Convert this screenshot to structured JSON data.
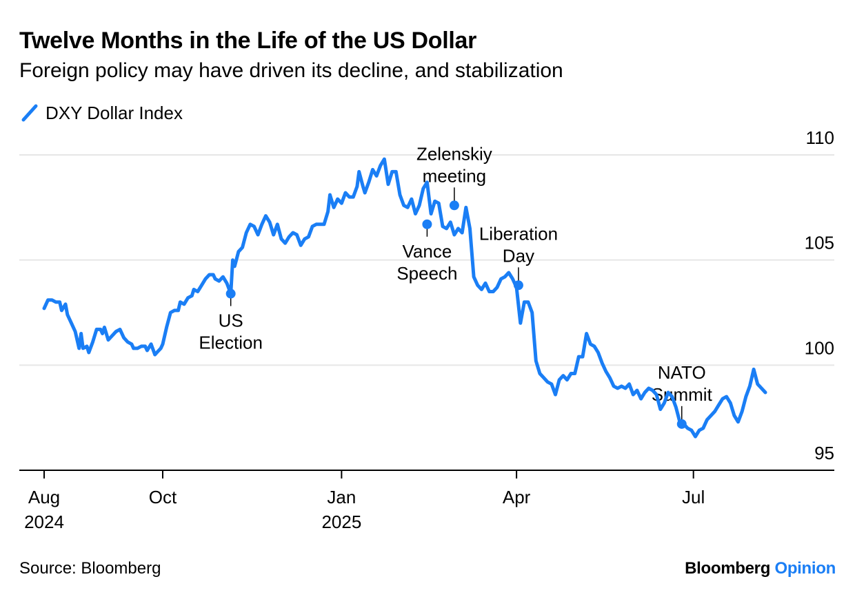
{
  "title": "Twelve Months in the Life of the US Dollar",
  "subtitle": "Foreign policy may have driven its decline, and stabilization",
  "source": "Source: Bloomberg",
  "brand": {
    "name": "Bloomberg",
    "suffix": "Opinion"
  },
  "colors": {
    "line": "#1a7ef5",
    "grid": "#e6e6e6",
    "axis": "#000000",
    "text": "#000000",
    "brand_accent": "#1a7ef5"
  },
  "chart_data": {
    "type": "line",
    "title": "Twelve Months in the Life of the US Dollar",
    "subtitle": "Foreign policy may have driven its decline, and stabilization",
    "xlabel": "",
    "ylabel": "",
    "ylim": [
      95,
      110
    ],
    "xlim": [
      "2024-07-25",
      "2025-08-31"
    ],
    "yaxis_position": "right",
    "grid": true,
    "legend_position": "top-left",
    "y_ticks": [
      {
        "value": 95,
        "label": "95"
      },
      {
        "value": 100,
        "label": "100"
      },
      {
        "value": 105,
        "label": "105"
      },
      {
        "value": 110,
        "label": "110"
      }
    ],
    "x_ticks": [
      {
        "date": "2024-08-01",
        "label": "Aug",
        "sublabel": "2024"
      },
      {
        "date": "2024-10-01",
        "label": "Oct",
        "sublabel": ""
      },
      {
        "date": "2025-01-01",
        "label": "Jan",
        "sublabel": "2025"
      },
      {
        "date": "2025-04-01",
        "label": "Apr",
        "sublabel": ""
      },
      {
        "date": "2025-07-01",
        "label": "Jul",
        "sublabel": ""
      }
    ],
    "series": [
      {
        "name": "DXY Dollar Index",
        "points": [
          [
            "2024-08-01",
            102.7
          ],
          [
            "2024-08-03",
            103.1
          ],
          [
            "2024-08-05",
            103.1
          ],
          [
            "2024-08-07",
            103.0
          ],
          [
            "2024-08-09",
            103.0
          ],
          [
            "2024-08-10",
            102.6
          ],
          [
            "2024-08-12",
            102.9
          ],
          [
            "2024-08-13",
            102.4
          ],
          [
            "2024-08-15",
            102.0
          ],
          [
            "2024-08-17",
            101.6
          ],
          [
            "2024-08-19",
            100.8
          ],
          [
            "2024-08-20",
            101.5
          ],
          [
            "2024-08-21",
            100.8
          ],
          [
            "2024-08-23",
            100.9
          ],
          [
            "2024-08-24",
            100.6
          ],
          [
            "2024-08-26",
            101.1
          ],
          [
            "2024-08-28",
            101.7
          ],
          [
            "2024-08-30",
            101.7
          ],
          [
            "2024-08-31",
            101.5
          ],
          [
            "2024-09-01",
            101.8
          ],
          [
            "2024-09-03",
            101.2
          ],
          [
            "2024-09-05",
            101.4
          ],
          [
            "2024-09-07",
            101.6
          ],
          [
            "2024-09-09",
            101.7
          ],
          [
            "2024-09-11",
            101.3
          ],
          [
            "2024-09-13",
            101.1
          ],
          [
            "2024-09-15",
            101.0
          ],
          [
            "2024-09-16",
            100.8
          ],
          [
            "2024-09-18",
            100.8
          ],
          [
            "2024-09-20",
            100.9
          ],
          [
            "2024-09-22",
            100.9
          ],
          [
            "2024-09-23",
            100.7
          ],
          [
            "2024-09-25",
            101.0
          ],
          [
            "2024-09-27",
            100.5
          ],
          [
            "2024-09-28",
            100.6
          ],
          [
            "2024-09-30",
            100.8
          ],
          [
            "2024-10-01",
            101.0
          ],
          [
            "2024-10-03",
            101.8
          ],
          [
            "2024-10-05",
            102.5
          ],
          [
            "2024-10-07",
            102.6
          ],
          [
            "2024-10-09",
            102.6
          ],
          [
            "2024-10-10",
            103.0
          ],
          [
            "2024-10-12",
            102.9
          ],
          [
            "2024-10-14",
            103.2
          ],
          [
            "2024-10-16",
            103.3
          ],
          [
            "2024-10-17",
            103.6
          ],
          [
            "2024-10-19",
            103.5
          ],
          [
            "2024-10-21",
            103.8
          ],
          [
            "2024-10-23",
            104.1
          ],
          [
            "2024-10-25",
            104.3
          ],
          [
            "2024-10-27",
            104.3
          ],
          [
            "2024-10-28",
            104.1
          ],
          [
            "2024-10-30",
            104.0
          ],
          [
            "2024-11-01",
            104.2
          ],
          [
            "2024-11-03",
            103.9
          ],
          [
            "2024-11-05",
            103.4
          ],
          [
            "2024-11-06",
            105.0
          ],
          [
            "2024-11-07",
            104.7
          ],
          [
            "2024-11-09",
            105.4
          ],
          [
            "2024-11-11",
            105.6
          ],
          [
            "2024-11-13",
            106.3
          ],
          [
            "2024-11-15",
            106.7
          ],
          [
            "2024-11-17",
            106.6
          ],
          [
            "2024-11-19",
            106.2
          ],
          [
            "2024-11-21",
            106.7
          ],
          [
            "2024-11-23",
            107.1
          ],
          [
            "2024-11-25",
            106.8
          ],
          [
            "2024-11-27",
            106.2
          ],
          [
            "2024-11-29",
            106.7
          ],
          [
            "2024-12-01",
            106.0
          ],
          [
            "2024-12-03",
            105.8
          ],
          [
            "2024-12-05",
            106.1
          ],
          [
            "2024-12-07",
            106.3
          ],
          [
            "2024-12-09",
            106.2
          ],
          [
            "2024-12-11",
            105.7
          ],
          [
            "2024-12-13",
            106.0
          ],
          [
            "2024-12-15",
            106.1
          ],
          [
            "2024-12-17",
            106.6
          ],
          [
            "2024-12-19",
            106.7
          ],
          [
            "2024-12-21",
            106.7
          ],
          [
            "2024-12-23",
            106.7
          ],
          [
            "2024-12-25",
            107.3
          ],
          [
            "2024-12-26",
            108.1
          ],
          [
            "2024-12-28",
            107.5
          ],
          [
            "2024-12-30",
            107.9
          ],
          [
            "2025-01-01",
            107.7
          ],
          [
            "2025-01-03",
            108.2
          ],
          [
            "2025-01-05",
            108.0
          ],
          [
            "2025-01-07",
            108.0
          ],
          [
            "2025-01-09",
            108.5
          ],
          [
            "2025-01-10",
            109.2
          ],
          [
            "2025-01-12",
            108.5
          ],
          [
            "2025-01-13",
            108.2
          ],
          [
            "2025-01-15",
            108.7
          ],
          [
            "2025-01-17",
            109.3
          ],
          [
            "2025-01-19",
            109.0
          ],
          [
            "2025-01-21",
            109.5
          ],
          [
            "2025-01-23",
            109.8
          ],
          [
            "2025-01-25",
            108.6
          ],
          [
            "2025-01-27",
            109.2
          ],
          [
            "2025-01-29",
            109.2
          ],
          [
            "2025-01-31",
            108.1
          ],
          [
            "2025-02-02",
            107.6
          ],
          [
            "2025-02-04",
            107.5
          ],
          [
            "2025-02-06",
            107.9
          ],
          [
            "2025-02-08",
            107.2
          ],
          [
            "2025-02-10",
            107.6
          ],
          [
            "2025-02-12",
            108.4
          ],
          [
            "2025-02-14",
            108.7
          ],
          [
            "2025-02-16",
            107.2
          ],
          [
            "2025-02-18",
            107.8
          ],
          [
            "2025-02-20",
            107.7
          ],
          [
            "2025-02-22",
            106.6
          ],
          [
            "2025-02-24",
            106.5
          ],
          [
            "2025-02-26",
            106.8
          ],
          [
            "2025-02-28",
            106.2
          ],
          [
            "2025-03-02",
            106.5
          ],
          [
            "2025-03-04",
            106.3
          ],
          [
            "2025-03-06",
            107.5
          ],
          [
            "2025-03-08",
            106.5
          ],
          [
            "2025-03-10",
            104.2
          ],
          [
            "2025-03-12",
            103.8
          ],
          [
            "2025-03-14",
            103.6
          ],
          [
            "2025-03-16",
            103.9
          ],
          [
            "2025-03-18",
            103.5
          ],
          [
            "2025-03-20",
            103.5
          ],
          [
            "2025-03-22",
            103.7
          ],
          [
            "2025-03-24",
            104.1
          ],
          [
            "2025-03-26",
            104.2
          ],
          [
            "2025-03-28",
            104.4
          ],
          [
            "2025-03-30",
            104.1
          ],
          [
            "2025-04-01",
            103.7
          ],
          [
            "2025-04-03",
            102.0
          ],
          [
            "2025-04-05",
            103.0
          ],
          [
            "2025-04-07",
            103.0
          ],
          [
            "2025-04-09",
            102.5
          ],
          [
            "2025-04-11",
            100.2
          ],
          [
            "2025-04-13",
            99.6
          ],
          [
            "2025-04-15",
            99.4
          ],
          [
            "2025-04-17",
            99.2
          ],
          [
            "2025-04-19",
            99.1
          ],
          [
            "2025-04-21",
            98.6
          ],
          [
            "2025-04-23",
            99.3
          ],
          [
            "2025-04-25",
            99.5
          ],
          [
            "2025-04-27",
            99.3
          ],
          [
            "2025-04-29",
            99.6
          ],
          [
            "2025-05-01",
            99.6
          ],
          [
            "2025-05-03",
            100.4
          ],
          [
            "2025-05-05",
            100.4
          ],
          [
            "2025-05-07",
            101.5
          ],
          [
            "2025-05-09",
            101.0
          ],
          [
            "2025-05-11",
            100.9
          ],
          [
            "2025-05-13",
            100.6
          ],
          [
            "2025-05-15",
            100.1
          ],
          [
            "2025-05-17",
            99.7
          ],
          [
            "2025-05-19",
            99.4
          ],
          [
            "2025-05-21",
            99.0
          ],
          [
            "2025-05-23",
            98.9
          ],
          [
            "2025-05-25",
            99.0
          ],
          [
            "2025-05-27",
            98.9
          ],
          [
            "2025-05-29",
            99.1
          ],
          [
            "2025-05-31",
            98.6
          ],
          [
            "2025-06-02",
            98.8
          ],
          [
            "2025-06-04",
            98.4
          ],
          [
            "2025-06-06",
            98.7
          ],
          [
            "2025-06-08",
            98.9
          ],
          [
            "2025-06-10",
            98.8
          ],
          [
            "2025-06-12",
            98.6
          ],
          [
            "2025-06-14",
            97.9
          ],
          [
            "2025-06-16",
            98.2
          ],
          [
            "2025-06-18",
            98.7
          ],
          [
            "2025-06-20",
            98.5
          ],
          [
            "2025-06-22",
            98.0
          ],
          [
            "2025-06-24",
            97.3
          ],
          [
            "2025-06-26",
            97.2
          ],
          [
            "2025-06-28",
            97.0
          ],
          [
            "2025-06-30",
            96.9
          ],
          [
            "2025-07-02",
            96.6
          ],
          [
            "2025-07-04",
            96.9
          ],
          [
            "2025-07-06",
            97.0
          ],
          [
            "2025-07-08",
            97.4
          ],
          [
            "2025-07-10",
            97.6
          ],
          [
            "2025-07-12",
            97.8
          ],
          [
            "2025-07-14",
            98.1
          ],
          [
            "2025-07-16",
            98.4
          ],
          [
            "2025-07-18",
            98.5
          ],
          [
            "2025-07-20",
            98.2
          ],
          [
            "2025-07-22",
            97.6
          ],
          [
            "2025-07-24",
            97.3
          ],
          [
            "2025-07-26",
            97.8
          ],
          [
            "2025-07-28",
            98.5
          ],
          [
            "2025-07-30",
            99.0
          ],
          [
            "2025-08-01",
            99.8
          ],
          [
            "2025-08-03",
            99.1
          ],
          [
            "2025-08-05",
            98.9
          ],
          [
            "2025-08-07",
            98.7
          ]
        ]
      }
    ],
    "annotations": [
      {
        "label": [
          "US",
          "Election"
        ],
        "date": "2024-11-05",
        "value": 103.4,
        "placement": "below"
      },
      {
        "label": [
          "Vance",
          "Speech"
        ],
        "date": "2025-02-14",
        "value": 106.7,
        "placement": "below"
      },
      {
        "label": [
          "Zelenskiy",
          "meeting"
        ],
        "date": "2025-02-28",
        "value": 107.6,
        "placement": "above"
      },
      {
        "label": [
          "Liberation",
          "Day"
        ],
        "date": "2025-04-02",
        "value": 103.8,
        "placement": "above"
      },
      {
        "label": [
          "NATO",
          "Summit"
        ],
        "date": "2025-06-25",
        "value": 97.2,
        "placement": "above"
      }
    ]
  }
}
